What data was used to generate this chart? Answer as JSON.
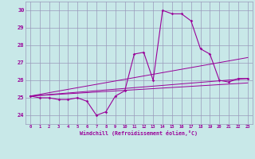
{
  "xlabel": "Windchill (Refroidissement éolien,°C)",
  "ylabel": "",
  "xlim": [
    -0.5,
    23.5
  ],
  "ylim": [
    23.5,
    30.5
  ],
  "yticks": [
    24,
    25,
    26,
    27,
    28,
    29,
    30
  ],
  "xticks": [
    0,
    1,
    2,
    3,
    4,
    5,
    6,
    7,
    8,
    9,
    10,
    11,
    12,
    13,
    14,
    15,
    16,
    17,
    18,
    19,
    20,
    21,
    22,
    23
  ],
  "background_color": "#c8e8e8",
  "grid_color": "#9999bb",
  "line_color": "#990099",
  "main_line": [
    25.1,
    25.0,
    25.0,
    24.9,
    24.9,
    25.0,
    24.8,
    24.0,
    24.2,
    25.1,
    25.4,
    27.5,
    27.6,
    26.0,
    30.0,
    29.8,
    29.8,
    29.4,
    27.8,
    27.5,
    26.0,
    25.9,
    26.1,
    26.1
  ],
  "trend_line1_y": [
    25.1,
    26.1
  ],
  "trend_line2_y": [
    25.1,
    27.3
  ],
  "trend_line3_y": [
    25.1,
    25.85
  ]
}
